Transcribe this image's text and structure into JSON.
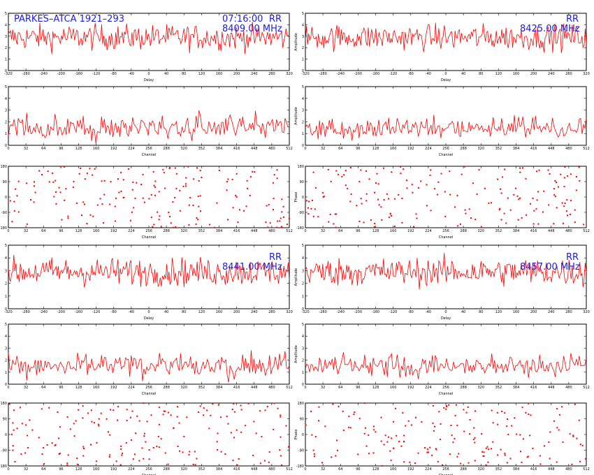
{
  "colors": {
    "trace": "#ff0000",
    "annotation": "#1a1ae6",
    "frame": "#000000"
  },
  "annotations": {
    "source": "PARKES–ATCA  1921–293",
    "time": "07:16:00",
    "pol": "RR",
    "freq_1": "8409.00  MHz",
    "freq_2": "8425.00  MHz",
    "freq_3": "8441.00  MHz",
    "freq_4": "8457.00  MHz"
  },
  "chart_data": [
    {
      "type": "line",
      "band": 1,
      "panel": "delay",
      "xlabel": "Delay",
      "ylabel": "",
      "xlim": [
        -320,
        320
      ],
      "ylim": [
        0,
        5
      ],
      "grid": false
    },
    {
      "type": "line",
      "band": 1,
      "panel": "spectrum",
      "xlabel": "Channel",
      "ylabel": "",
      "xlim": [
        0,
        512
      ],
      "ylim": [
        0,
        5
      ],
      "grid": false
    },
    {
      "type": "scatter",
      "band": 1,
      "panel": "phase",
      "xlabel": "Channel",
      "ylabel": "Phase",
      "xlim": [
        0,
        512
      ],
      "ylim": [
        -180,
        180
      ],
      "grid": false
    },
    {
      "type": "line",
      "band": 2,
      "panel": "delay",
      "xlabel": "Delay",
      "ylabel": "Amplitude",
      "xlim": [
        -320,
        320
      ],
      "ylim": [
        0,
        5
      ],
      "grid": false
    },
    {
      "type": "line",
      "band": 2,
      "panel": "spectrum",
      "xlabel": "Channel",
      "ylabel": "Amplitude",
      "xlim": [
        0,
        512
      ],
      "ylim": [
        0,
        5
      ],
      "grid": false
    },
    {
      "type": "scatter",
      "band": 2,
      "panel": "phase",
      "xlabel": "Channel",
      "ylabel": "Phase",
      "xlim": [
        0,
        512
      ],
      "ylim": [
        -180,
        180
      ],
      "grid": false
    },
    {
      "type": "line",
      "band": 3,
      "panel": "delay",
      "xlabel": "Delay",
      "ylabel": "",
      "xlim": [
        -320,
        320
      ],
      "ylim": [
        0,
        5
      ],
      "grid": false
    },
    {
      "type": "line",
      "band": 3,
      "panel": "spectrum",
      "xlabel": "Channel",
      "ylabel": "",
      "xlim": [
        0,
        512
      ],
      "ylim": [
        0,
        5
      ],
      "grid": false
    },
    {
      "type": "scatter",
      "band": 3,
      "panel": "phase",
      "xlabel": "Channel",
      "ylabel": "Phase",
      "xlim": [
        0,
        512
      ],
      "ylim": [
        -180,
        180
      ],
      "grid": false
    },
    {
      "type": "line",
      "band": 4,
      "panel": "delay",
      "xlabel": "Delay",
      "ylabel": "Amplitude",
      "xlim": [
        -320,
        320
      ],
      "ylim": [
        0,
        5
      ],
      "grid": false
    },
    {
      "type": "line",
      "band": 4,
      "panel": "spectrum",
      "xlabel": "Channel",
      "ylabel": "Amplitude",
      "xlim": [
        0,
        512
      ],
      "ylim": [
        0,
        5
      ],
      "grid": false
    },
    {
      "type": "scatter",
      "band": 4,
      "panel": "phase",
      "xlabel": "Channel",
      "ylabel": "Phase",
      "xlim": [
        0,
        512
      ],
      "ylim": [
        -180,
        180
      ],
      "grid": false
    }
  ]
}
